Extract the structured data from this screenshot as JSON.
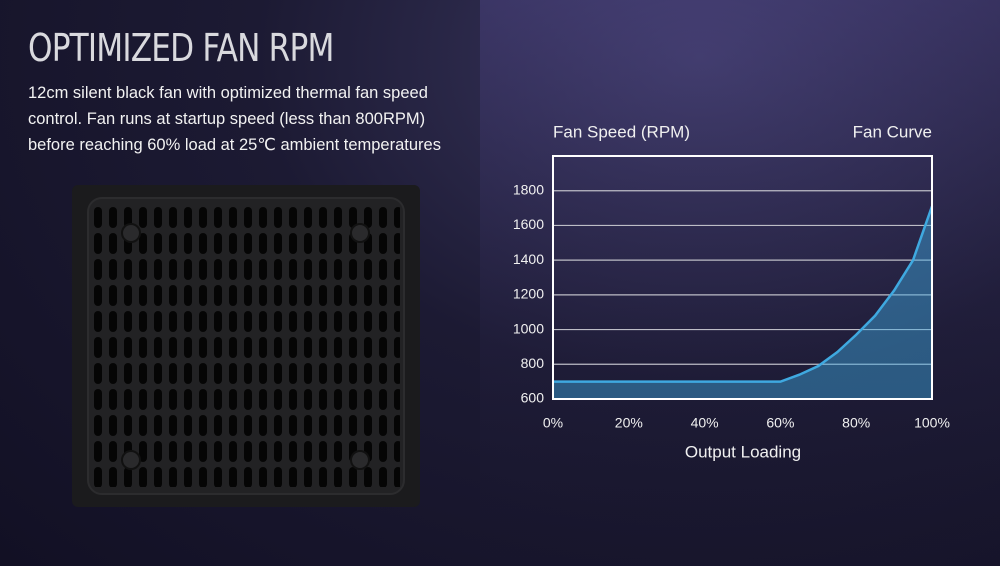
{
  "header": {
    "title": "OPTIMIZED FAN RPM",
    "description": "12cm silent black fan with optimized thermal fan speed control. Fan runs at startup speed (less than 800RPM) before reaching 60% load at 25℃ ambient temperatures"
  },
  "chart_data": {
    "type": "line",
    "y_label": "Fan Speed (RPM)",
    "x_label": "Output Loading",
    "x": [
      0,
      60,
      65,
      70,
      75,
      80,
      85,
      90,
      95,
      100
    ],
    "series": [
      {
        "name": "Fan Curve",
        "color": "#3fa9e0",
        "values": [
          700,
          700,
          740,
          790,
          870,
          970,
          1080,
          1225,
          1400,
          1710
        ]
      }
    ],
    "xlim": [
      0,
      100
    ],
    "xticks": [
      {
        "value": 0,
        "label": "0%"
      },
      {
        "value": 20,
        "label": "20%"
      },
      {
        "value": 40,
        "label": "40%"
      },
      {
        "value": 60,
        "label": "60%"
      },
      {
        "value": 80,
        "label": "80%"
      },
      {
        "value": 100,
        "label": "100%"
      }
    ],
    "ylim": [
      600,
      2000
    ],
    "yticks": [
      600,
      800,
      1000,
      1200,
      1400,
      1600,
      1800
    ],
    "grid": true
  }
}
